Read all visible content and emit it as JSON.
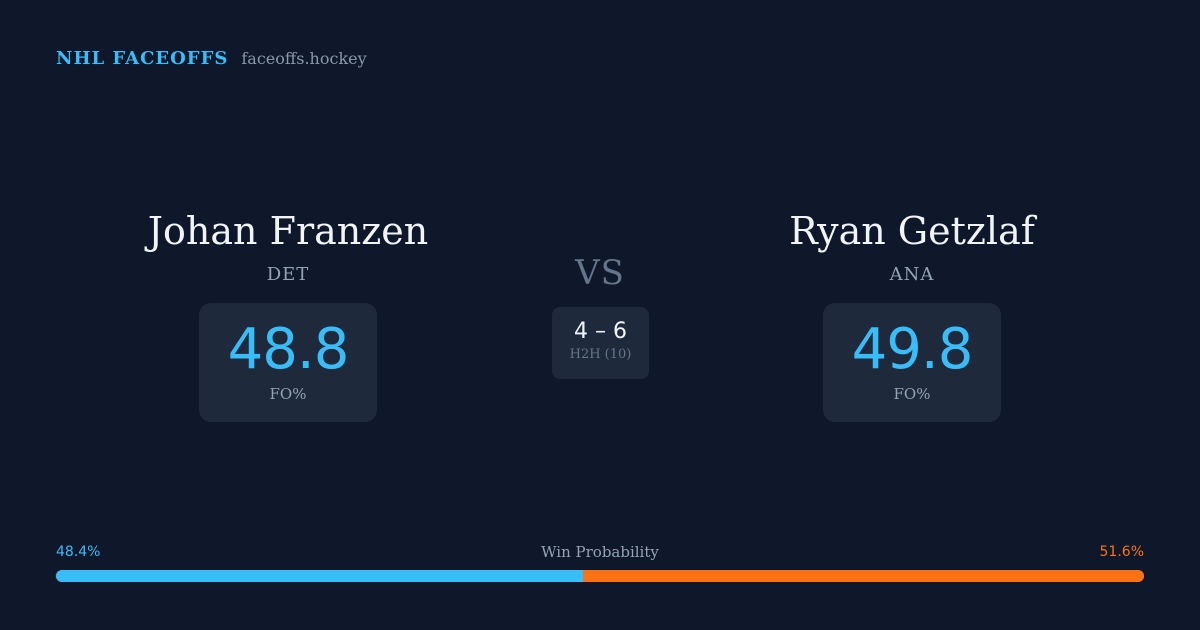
{
  "brand": {
    "title": "NHL FACEOFFS",
    "domain": "faceoffs.hockey"
  },
  "players": {
    "left": {
      "name": "Johan Franzen",
      "team": "DET",
      "fo_pct": "48.8",
      "fo_label": "FO%"
    },
    "right": {
      "name": "Ryan Getzlaf",
      "team": "ANA",
      "fo_pct": "49.8",
      "fo_label": "FO%"
    }
  },
  "matchup": {
    "vs_label": "VS",
    "h2h_score": "4 – 6",
    "h2h_label": "H2H (10)"
  },
  "win_probability": {
    "title": "Win Probability",
    "left_label": "48.4%",
    "right_label": "51.6%",
    "left_value": 48.4,
    "right_value": 51.6
  },
  "colors": {
    "background": "#0f172a",
    "card": "#1e293b",
    "accent_left": "#38bdf8",
    "accent_right": "#f97316"
  }
}
